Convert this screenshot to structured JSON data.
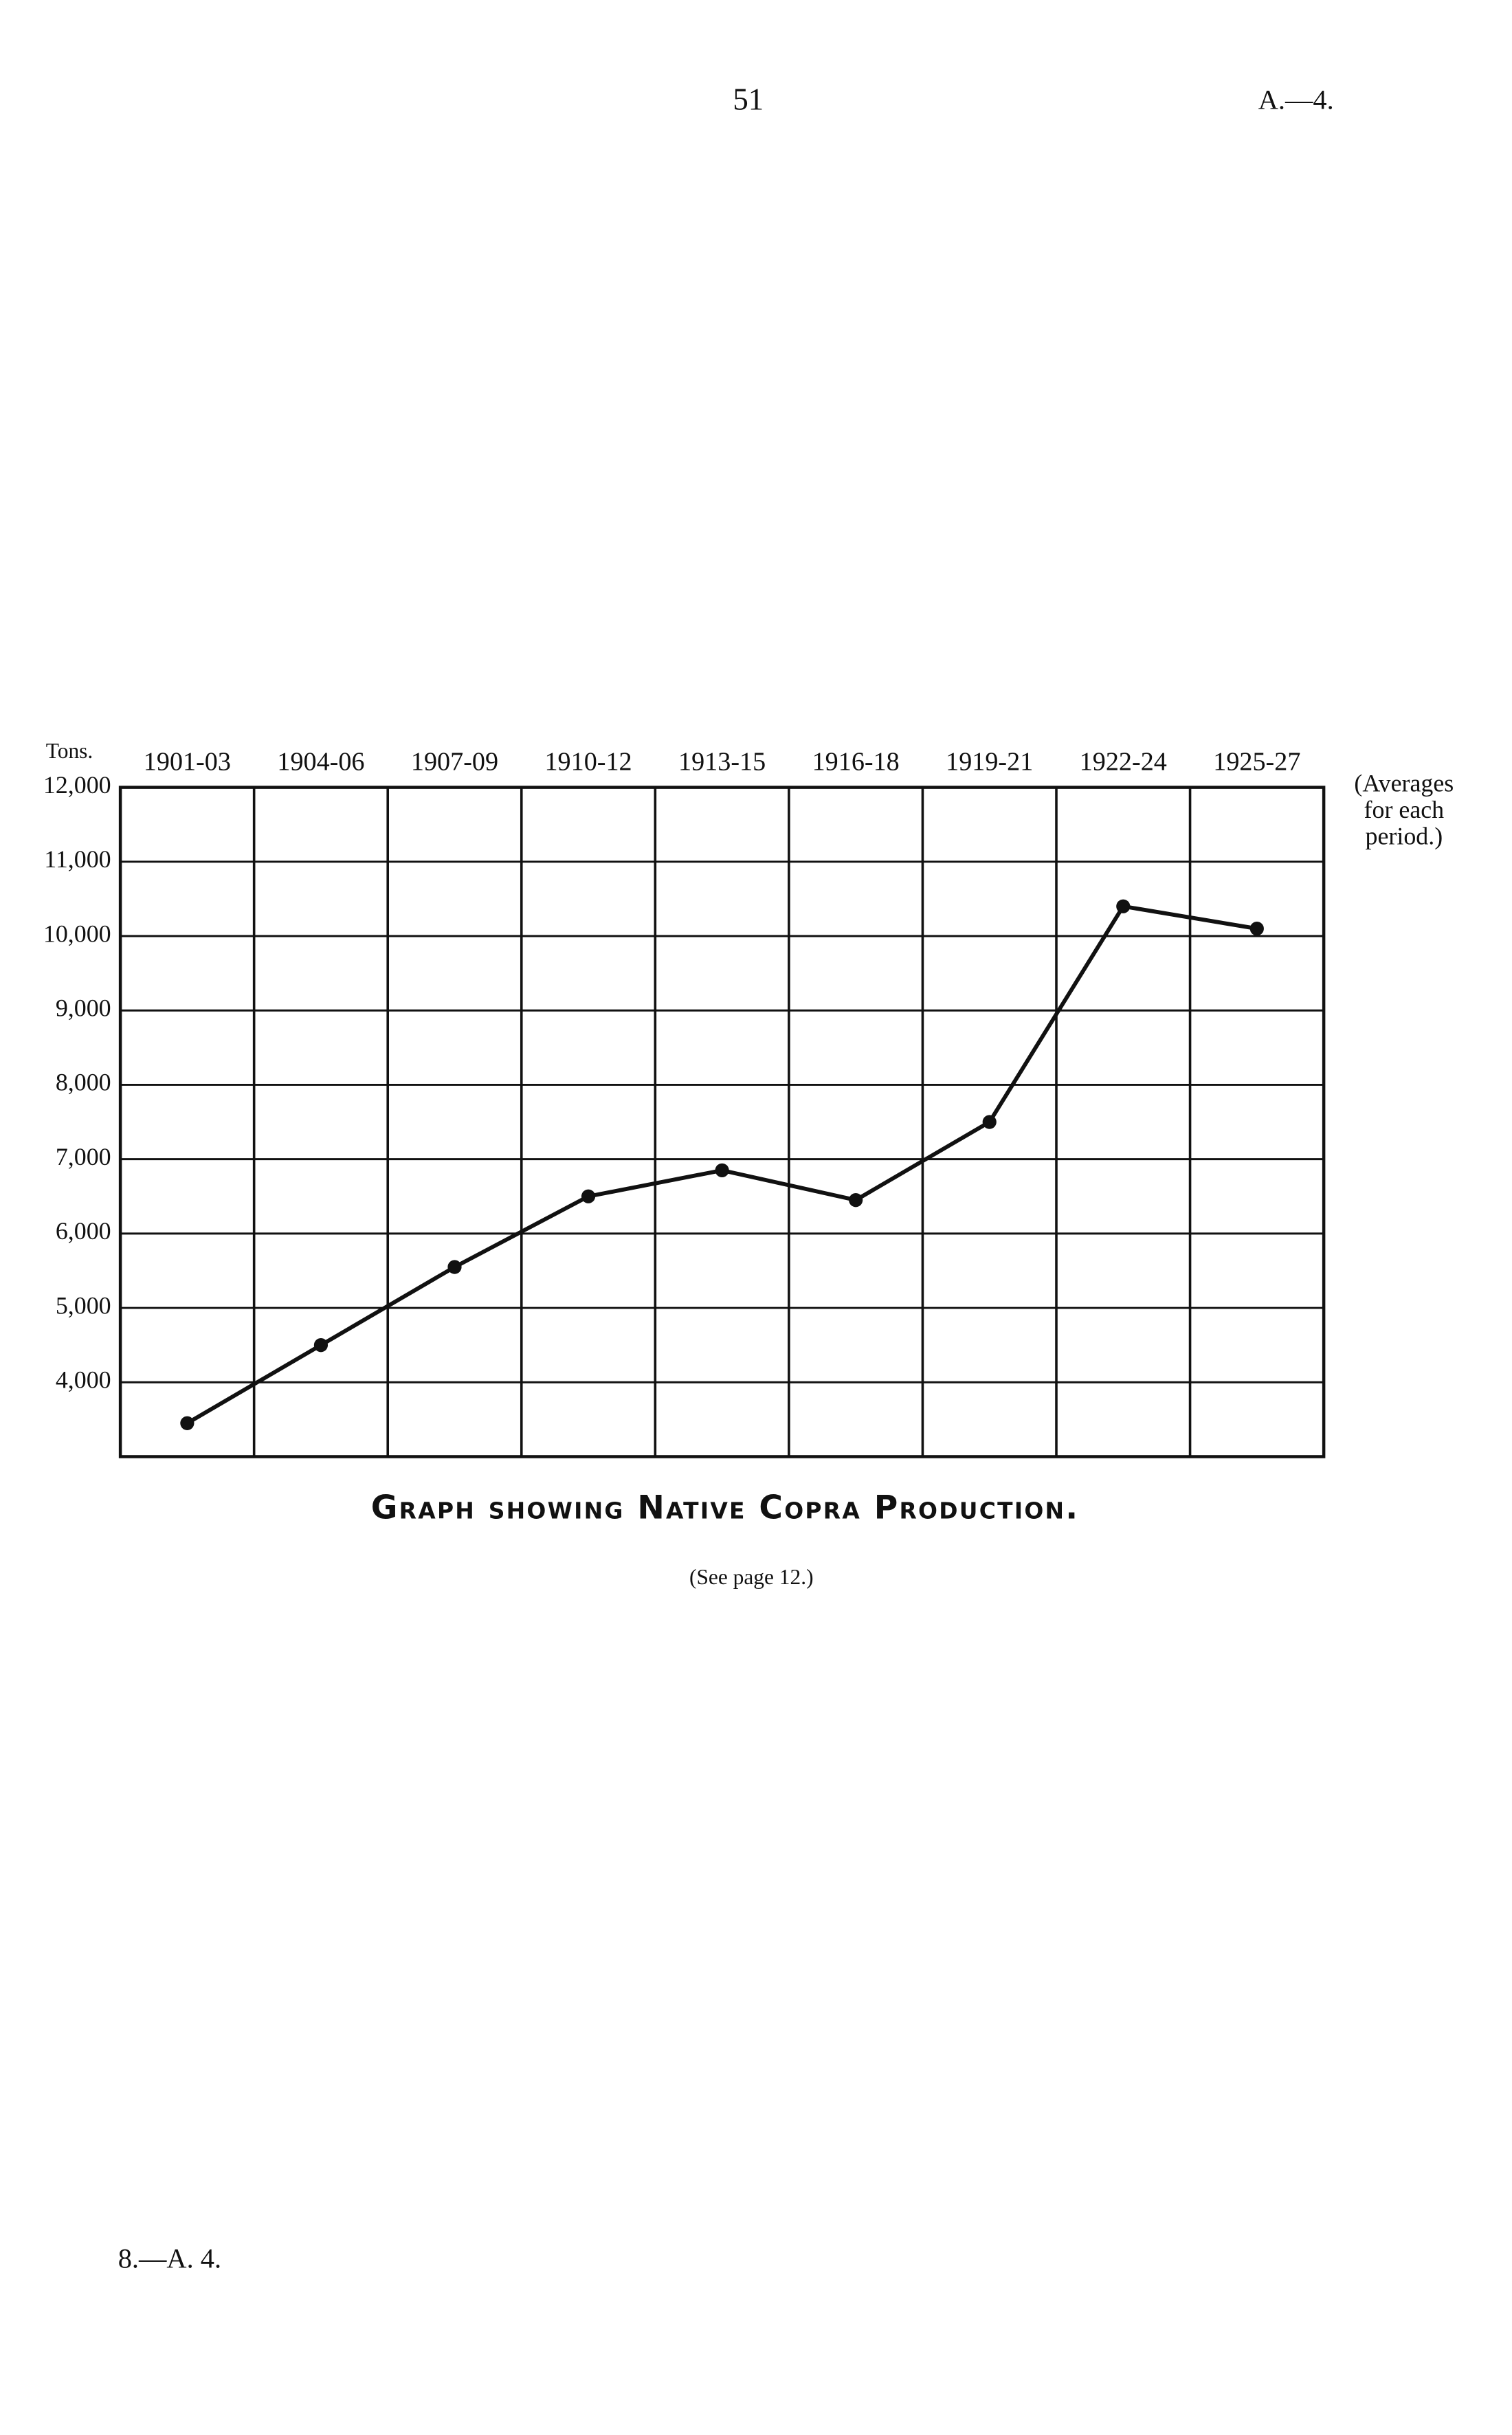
{
  "page": {
    "number": "51",
    "reference": "A.—4.",
    "footer": "8.—A. 4."
  },
  "chart_data": {
    "type": "line",
    "title": "Graph showing Native Copra Production.",
    "subtitle": "(See page 12.)",
    "y_label": "Tons.",
    "annotation": [
      "(Averages",
      "for each",
      "period.)"
    ],
    "categories": [
      "1901-03",
      "1904-06",
      "1907-09",
      "1910-12",
      "1913-15",
      "1916-18",
      "1919-21",
      "1922-24",
      "1925-27"
    ],
    "series": [
      {
        "name": "Native copra production",
        "color": "#111111",
        "values": [
          3450,
          4500,
          5550,
          6500,
          6850,
          6450,
          7500,
          10400,
          10100
        ]
      }
    ],
    "ylim": [
      3000,
      12000
    ],
    "yticks": [
      {
        "value": 4000,
        "label": "4,000"
      },
      {
        "value": 5000,
        "label": "5,000"
      },
      {
        "value": 6000,
        "label": "6,000"
      },
      {
        "value": 7000,
        "label": "7,000"
      },
      {
        "value": 8000,
        "label": "8,000"
      },
      {
        "value": 9000,
        "label": "9,000"
      },
      {
        "value": 10000,
        "label": "10,000"
      },
      {
        "value": 11000,
        "label": "11,000"
      },
      {
        "value": 12000,
        "label": "12,000"
      }
    ],
    "grid": true
  }
}
